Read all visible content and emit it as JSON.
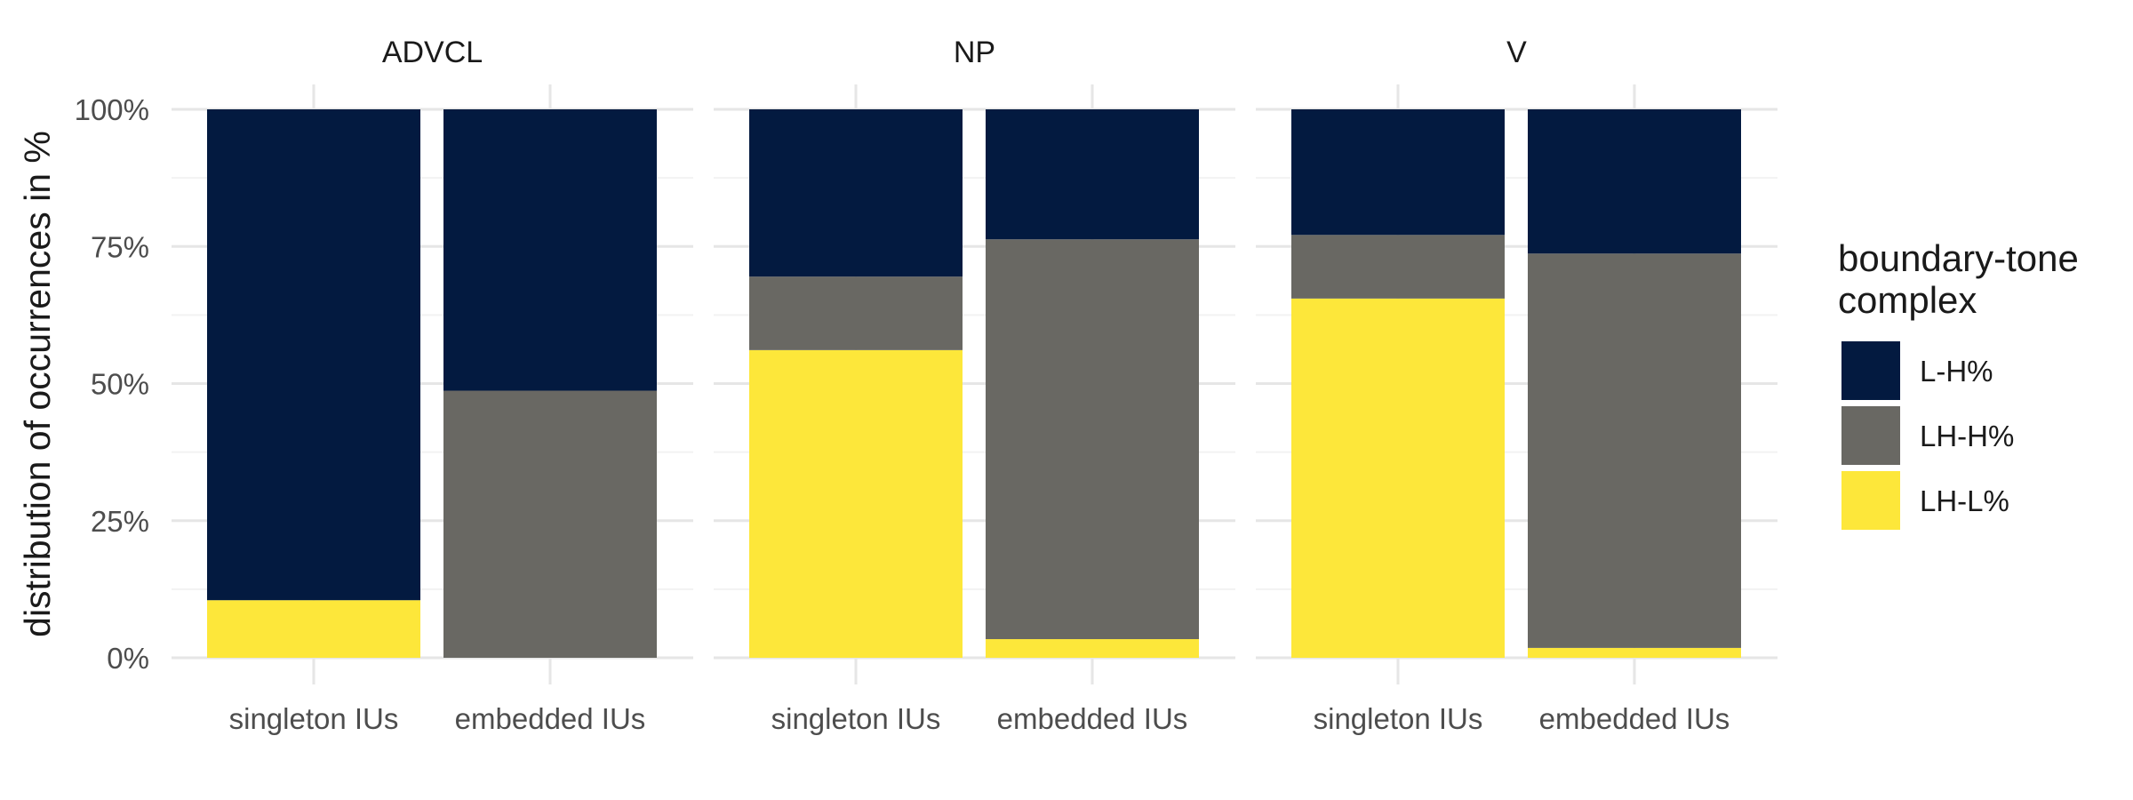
{
  "chart_data": {
    "type": "bar",
    "stacked": true,
    "percent": true,
    "ylabel": "distribution of occurrences in %",
    "xlabel": "",
    "ylim": [
      0,
      100
    ],
    "y_ticks": [
      "0%",
      "25%",
      "50%",
      "75%",
      "100%"
    ],
    "categories": [
      "singleton IUs",
      "embedded IUs"
    ],
    "grid": true,
    "legend": {
      "title": [
        "boundary-tone",
        "complex"
      ],
      "position": "right"
    },
    "series": [
      {
        "name": "L-H%",
        "color": "#031a40"
      },
      {
        "name": "LH-H%",
        "color": "#696863"
      },
      {
        "name": "LH-L%",
        "color": "#fde73a"
      }
    ],
    "facets": [
      {
        "label": "ADVCL",
        "bars": [
          {
            "category": "singleton IUs",
            "values": {
              "L-H%": 89.5,
              "LH-H%": 0,
              "LH-L%": 10.5
            }
          },
          {
            "category": "embedded IUs",
            "values": {
              "L-H%": 51.3,
              "LH-H%": 48.7,
              "LH-L%": 0
            }
          }
        ]
      },
      {
        "label": "NP",
        "bars": [
          {
            "category": "singleton IUs",
            "values": {
              "L-H%": 30.5,
              "LH-H%": 13.4,
              "LH-L%": 56.1
            }
          },
          {
            "category": "embedded IUs",
            "values": {
              "L-H%": 23.7,
              "LH-H%": 72.9,
              "LH-L%": 3.4
            }
          }
        ]
      },
      {
        "label": "V",
        "bars": [
          {
            "category": "singleton IUs",
            "values": {
              "L-H%": 22.9,
              "LH-H%": 11.6,
              "LH-L%": 65.5
            }
          },
          {
            "category": "embedded IUs",
            "values": {
              "L-H%": 26.3,
              "LH-H%": 71.9,
              "LH-L%": 1.8
            }
          }
        ]
      }
    ]
  }
}
